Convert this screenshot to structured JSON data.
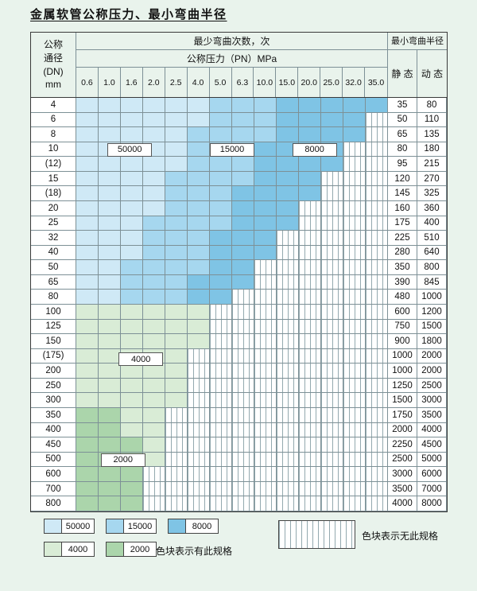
{
  "title": "金属软管公称压力、最小弯曲半径",
  "colors": {
    "page_bg": "#e9f3ec",
    "border_inner": "#7d9096",
    "A": "#cfe9f6",
    "B": "#a6d7ef",
    "C": "#7fc4e5",
    "D": "#d9ecd6",
    "E": "#abd5ab",
    "hatch_line": "#93a9af"
  },
  "header": {
    "dn_lines": [
      "公称",
      "通径",
      "(DN)",
      "mm"
    ],
    "cycles_title": "最少弯曲次数，次",
    "pressure_title": "公称压力（PN）MPa",
    "pressures": [
      "0.6",
      "1.0",
      "1.6",
      "2.0",
      "2.5",
      "4.0",
      "5.0",
      "6.3",
      "10.0",
      "15.0",
      "20.0",
      "25.0",
      "32.0",
      "35.0"
    ],
    "radius_title": "最小弯曲半径",
    "static_label": "静 态",
    "dynamic_label": "动 态"
  },
  "rows": [
    {
      "dn": "4",
      "cells": "AAAAAABBBCCCCC",
      "static": "35",
      "dynamic": "80"
    },
    {
      "dn": "6",
      "cells": "AAAAAABBBCCCCX",
      "static": "50",
      "dynamic": "110"
    },
    {
      "dn": "8",
      "cells": "AAAAABBBBCCCCX",
      "static": "65",
      "dynamic": "135"
    },
    {
      "dn": "10",
      "cells": "AAAAABBBCCCCXX",
      "static": "80",
      "dynamic": "180"
    },
    {
      "dn": "(12)",
      "cells": "AAAAABBBCCCCXX",
      "static": "95",
      "dynamic": "215"
    },
    {
      "dn": "15",
      "cells": "AAAABBBBCCCXXX",
      "static": "120",
      "dynamic": "270"
    },
    {
      "dn": "(18)",
      "cells": "AAAABBBCCCCXXX",
      "static": "145",
      "dynamic": "325"
    },
    {
      "dn": "20",
      "cells": "AAAABBBCCCXXXX",
      "static": "160",
      "dynamic": "360"
    },
    {
      "dn": "25",
      "cells": "AAABBBBCCCXXXX",
      "static": "175",
      "dynamic": "400"
    },
    {
      "dn": "32",
      "cells": "AAABBBCCCXXXXX",
      "static": "225",
      "dynamic": "510"
    },
    {
      "dn": "40",
      "cells": "AAABBBCCCXXXXX",
      "static": "280",
      "dynamic": "640"
    },
    {
      "dn": "50",
      "cells": "AABBBBCCXXXXXX",
      "static": "350",
      "dynamic": "800"
    },
    {
      "dn": "65",
      "cells": "AABBBCCCXXXXXX",
      "static": "390",
      "dynamic": "845"
    },
    {
      "dn": "80",
      "cells": "AABBBCCXXXXXXX",
      "static": "480",
      "dynamic": "1000"
    },
    {
      "dn": "100",
      "cells": "DDDDDDXXXXXXXX",
      "static": "600",
      "dynamic": "1200"
    },
    {
      "dn": "125",
      "cells": "DDDDDDXXXXXXXX",
      "static": "750",
      "dynamic": "1500"
    },
    {
      "dn": "150",
      "cells": "DDDDDDXXXXXXXX",
      "static": "900",
      "dynamic": "1800"
    },
    {
      "dn": "(175)",
      "cells": "DDDDDXXXXXXXXX",
      "static": "1000",
      "dynamic": "2000"
    },
    {
      "dn": "200",
      "cells": "DDDDDXXXXXXXXX",
      "static": "1000",
      "dynamic": "2000"
    },
    {
      "dn": "250",
      "cells": "DDDDDXXXXXXXXX",
      "static": "1250",
      "dynamic": "2500"
    },
    {
      "dn": "300",
      "cells": "DDDDDXXXXXXXXX",
      "static": "1500",
      "dynamic": "3000"
    },
    {
      "dn": "350",
      "cells": "EEDDXXXXXXXXXX",
      "static": "1750",
      "dynamic": "3500"
    },
    {
      "dn": "400",
      "cells": "EEDDXXXXXXXXXX",
      "static": "2000",
      "dynamic": "4000"
    },
    {
      "dn": "450",
      "cells": "EEEDXXXXXXXXXX",
      "static": "2250",
      "dynamic": "4500"
    },
    {
      "dn": "500",
      "cells": "EEEDXXXXXXXXXX",
      "static": "2500",
      "dynamic": "5000"
    },
    {
      "dn": "600",
      "cells": "EEEXXXXXXXXXXX",
      "static": "3000",
      "dynamic": "6000"
    },
    {
      "dn": "700",
      "cells": "EEEXXXXXXXXXXX",
      "static": "3500",
      "dynamic": "7000"
    },
    {
      "dn": "800",
      "cells": "EEEXXXXXXXXXXX",
      "static": "4000",
      "dynamic": "8000"
    }
  ],
  "overlays": [
    {
      "text": "50000",
      "col": 1.4,
      "span": 2,
      "row": 3
    },
    {
      "text": "15000",
      "col": 6,
      "span": 2,
      "row": 3
    },
    {
      "text": "8000",
      "col": 9.7,
      "span": 2,
      "row": 3
    },
    {
      "text": "4000",
      "col": 1.9,
      "span": 2,
      "row": 17.2
    },
    {
      "text": "2000",
      "col": 1.1,
      "span": 2,
      "row": 24
    }
  ],
  "legend": {
    "items_row1": [
      {
        "text": "50000",
        "key": "A"
      },
      {
        "text": "15000",
        "key": "B"
      },
      {
        "text": "8000",
        "key": "C"
      }
    ],
    "items_row2": [
      {
        "text": "4000",
        "key": "D"
      },
      {
        "text": "2000",
        "key": "E"
      }
    ],
    "available_text": "色块表示有此规格",
    "unavailable_text": "色块表示无此规格"
  }
}
